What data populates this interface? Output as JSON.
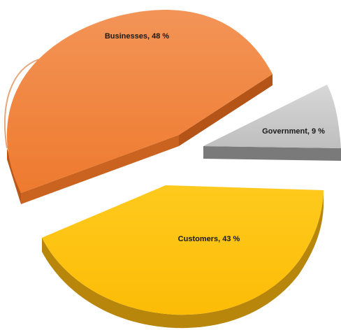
{
  "chart_data": {
    "type": "pie",
    "title": "",
    "unit": "%",
    "slices": [
      {
        "label": "Businesses",
        "value": 48,
        "display": "Businesses, 48 %",
        "color": "#F08033",
        "side_color": "#B9571A"
      },
      {
        "label": "Government",
        "value": 9,
        "display": "Government, 9 %",
        "color": "#C8C8C8",
        "side_color": "#7A7A7A"
      },
      {
        "label": "Customers",
        "value": 43,
        "display": "Customers, 43 %",
        "color": "#FFC20E",
        "side_color": "#B8860B"
      }
    ]
  }
}
